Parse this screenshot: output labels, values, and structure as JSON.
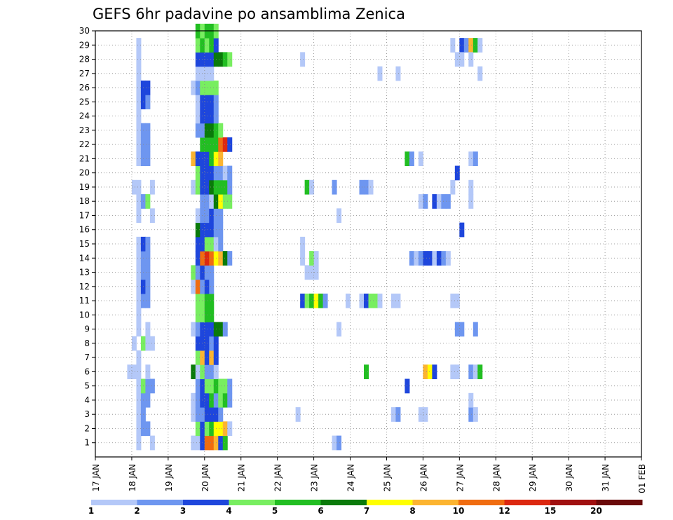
{
  "chart_data": {
    "type": "heatmap",
    "title": "GEFS 6hr padavine po ansamblima Zenica",
    "xlabel": "",
    "ylabel": "",
    "x_ticks": [
      "17 JAN",
      "18 JAN",
      "19 JAN",
      "20 JAN",
      "21 JAN",
      "22 JAN",
      "23 JAN",
      "24 JAN",
      "25 JAN",
      "26 JAN",
      "27 JAN",
      "28 JAN",
      "29 JAN",
      "30 JAN",
      "31 JAN",
      "01 FEB"
    ],
    "y_ticks": [
      "1",
      "2",
      "3",
      "4",
      "5",
      "6",
      "7",
      "8",
      "9",
      "10",
      "11",
      "12",
      "13",
      "14",
      "15",
      "16",
      "17",
      "18",
      "19",
      "20",
      "21",
      "22",
      "23",
      "24",
      "25",
      "26",
      "27",
      "28",
      "29",
      "30"
    ],
    "xlim": [
      0,
      60
    ],
    "ylim": [
      0,
      30
    ],
    "x_unit": "6-hour steps from 17 JAN 00z",
    "y_unit": "ensemble member",
    "grid": true,
    "levels": [
      1,
      2,
      3,
      4,
      5,
      6,
      7,
      8,
      10,
      12,
      15,
      20
    ],
    "level_colors": [
      "#b4c8f8",
      "#6e96f0",
      "#1e46dc",
      "#78ee60",
      "#22be22",
      "#0a7a0a",
      "#ffff00",
      "#fcb430",
      "#f06c10",
      "#dc2810",
      "#a01010",
      "#6a0a0a"
    ],
    "cells": [
      [
        1,
        1
      ],
      [
        2,
        1
      ],
      [
        3,
        2
      ],
      [
        4,
        2
      ],
      [
        5,
        2
      ],
      [
        6,
        1
      ],
      [
        7,
        1
      ],
      [
        8,
        2
      ],
      [
        9,
        2
      ],
      [
        11,
        1
      ],
      [
        12,
        2
      ],
      [
        13,
        2
      ],
      [
        14,
        1
      ],
      [
        15,
        1
      ],
      [
        18,
        1
      ],
      [
        19,
        1
      ],
      [
        21,
        1
      ],
      [
        22,
        1
      ],
      [
        25,
        1
      ],
      [
        26,
        1
      ],
      [
        29,
        1
      ],
      [
        30,
        1
      ],
      [
        28,
        1
      ],
      [
        27,
        1
      ],
      [
        26,
        2
      ],
      [
        25,
        2
      ],
      [
        24,
        1
      ],
      [
        23,
        2
      ],
      [
        22,
        2
      ],
      [
        21,
        2
      ],
      [
        20,
        1
      ],
      [
        19,
        1
      ],
      [
        18,
        2
      ],
      [
        17,
        1
      ],
      [
        16,
        1
      ],
      [
        15,
        1
      ],
      [
        14,
        2
      ],
      [
        13,
        2
      ],
      [
        12,
        2
      ],
      [
        11,
        2
      ],
      [
        9,
        1
      ],
      [
        8,
        1
      ],
      [
        6,
        1
      ],
      [
        5,
        1
      ],
      [
        4,
        2
      ],
      [
        3,
        2
      ],
      [
        2,
        2
      ],
      [
        1,
        1
      ],
      [
        18,
        4
      ],
      [
        13,
        1
      ],
      [
        8,
        4
      ],
      [
        7,
        2
      ],
      [
        5,
        4
      ],
      [
        4,
        2
      ],
      [
        2,
        2
      ],
      [
        1,
        1
      ],
      [
        27,
        2
      ],
      [
        26,
        2
      ],
      [
        25,
        2
      ],
      [
        24,
        2
      ],
      [
        23,
        2
      ],
      [
        22,
        2
      ],
      [
        21,
        2
      ],
      [
        19,
        2
      ],
      [
        18,
        2
      ],
      [
        15,
        2
      ],
      [
        14,
        2
      ],
      [
        13,
        1
      ],
      [
        12,
        2
      ],
      [
        11,
        2
      ],
      [
        9,
        2
      ],
      [
        8,
        1
      ],
      [
        5,
        2
      ],
      [
        4,
        2
      ],
      [
        3,
        2
      ],
      [
        2,
        2
      ],
      [
        17,
        1
      ],
      [
        8,
        1
      ],
      [
        5,
        2
      ],
      [
        4,
        2
      ]
    ],
    "cells_x": [
      1.5,
      1.5,
      1.5,
      1.5,
      1.5,
      1.5,
      1.5,
      1.5,
      1.5,
      1.5,
      1.5,
      1.5,
      1.5,
      1.5,
      1.5,
      1.5,
      1.5,
      1.5,
      1.5,
      1.5,
      1.5,
      1.5,
      1.5,
      1.5,
      1.5,
      1.5,
      1.5,
      1.5,
      1.5,
      1.5,
      1.5,
      1.5,
      1.5,
      1.5,
      1.5,
      1.5,
      1.5,
      1.5,
      1.5,
      1.5,
      1.5,
      1.5,
      1.5,
      1.5,
      1.5,
      1.5,
      1.5,
      1.5,
      2.75,
      2.75,
      2.75,
      2.75,
      2.75,
      2.75,
      2.75,
      2.75,
      4,
      4,
      4,
      4,
      4,
      4,
      4,
      4,
      4,
      4,
      4,
      4,
      4,
      4,
      4,
      4,
      4,
      4,
      4,
      4,
      5.25,
      5.25,
      5.25,
      5.25
    ],
    "blocks": [
      {
        "x": 1.5,
        "y": 29,
        "v": 1
      },
      {
        "x": 1.75,
        "y": 28,
        "v": 1
      }
    ],
    "grid_cells": [
      {
        "t": 0,
        "m": 6,
        "v": 1
      },
      {
        "t": 0,
        "m": 8,
        "v": 1
      },
      {
        "t": 0,
        "m": 19,
        "v": 1
      },
      {
        "t": 1,
        "m": 1,
        "v": 1
      },
      {
        "t": 1,
        "m": 2,
        "v": 2
      },
      {
        "t": 1,
        "m": 3,
        "v": 2
      },
      {
        "t": 1,
        "m": 4,
        "v": 2
      },
      {
        "t": 1,
        "m": 5,
        "v": 4
      },
      {
        "t": 1,
        "m": 6,
        "v": 1
      },
      {
        "t": 1,
        "m": 7,
        "v": 1
      },
      {
        "t": 1,
        "m": 8,
        "v": 4
      },
      {
        "t": 1,
        "m": 9,
        "v": 1
      },
      {
        "t": 1,
        "m": 10,
        "v": 1
      },
      {
        "t": 1,
        "m": 11,
        "v": 2
      },
      {
        "t": 1,
        "m": 12,
        "v": 3
      },
      {
        "t": 1,
        "m": 13,
        "v": 2
      },
      {
        "t": 1,
        "m": 14,
        "v": 2
      },
      {
        "t": 1,
        "m": 15,
        "v": 3
      },
      {
        "t": 1,
        "m": 16,
        "v": 3
      },
      {
        "t": 1,
        "m": 17,
        "v": 0
      },
      {
        "t": 1,
        "m": 18,
        "v": 2
      },
      {
        "t": 1,
        "m": 19,
        "v": 1
      },
      {
        "t": 1,
        "m": 21,
        "v": 2
      },
      {
        "t": 1,
        "m": 22,
        "v": 2
      },
      {
        "t": 1,
        "m": 23,
        "v": 1
      },
      {
        "t": 1,
        "m": 24,
        "v": 1
      },
      {
        "t": 1,
        "m": 25,
        "v": 3
      },
      {
        "t": 1,
        "m": 26,
        "v": 3
      },
      {
        "t": 1,
        "m": 27,
        "v": 1
      },
      {
        "t": 1,
        "m": 28,
        "v": 1
      },
      {
        "t": 1,
        "m": 29,
        "v": 1
      },
      {
        "t": 2,
        "m": 1,
        "v": 1
      },
      {
        "t": 2,
        "m": 2,
        "v": 2
      },
      {
        "t": 2,
        "m": 3,
        "v": 0
      },
      {
        "t": 2,
        "m": 4,
        "v": 2
      },
      {
        "t": 2,
        "m": 5,
        "v": 2
      },
      {
        "t": 2,
        "m": 6,
        "v": 0
      },
      {
        "t": 2,
        "m": 7,
        "v": 2
      },
      {
        "t": 2,
        "m": 8,
        "v": 1
      },
      {
        "t": 2,
        "m": 11,
        "v": 2
      },
      {
        "t": 2,
        "m": 12,
        "v": 2
      },
      {
        "t": 2,
        "m": 13,
        "v": 1
      },
      {
        "t": 2,
        "m": 14,
        "v": 1
      },
      {
        "t": 2,
        "m": 15,
        "v": 2
      },
      {
        "t": 2,
        "m": 18,
        "v": 4
      },
      {
        "t": 2,
        "m": 19,
        "v": 1
      },
      {
        "t": 2,
        "m": 20,
        "v": 1
      },
      {
        "t": 2,
        "m": 21,
        "v": 1
      },
      {
        "t": 2,
        "m": 22,
        "v": 2
      },
      {
        "t": 2,
        "m": 23,
        "v": 2
      },
      {
        "t": 2,
        "m": 24,
        "v": 1
      },
      {
        "t": 2,
        "m": 25,
        "v": 2
      },
      {
        "t": 2,
        "m": 26,
        "v": 3
      },
      {
        "t": 2,
        "m": 27,
        "v": 1
      },
      {
        "t": 2,
        "m": 28,
        "v": 1
      },
      {
        "t": 2,
        "m": 29,
        "v": 1
      },
      {
        "t": 3,
        "m": 5,
        "v": 2
      },
      {
        "t": 3,
        "m": 8,
        "v": 1
      },
      {
        "t": 3,
        "m": 17,
        "v": 1
      },
      {
        "t": 4,
        "m": 6,
        "v": 1
      }
    ]
  }
}
